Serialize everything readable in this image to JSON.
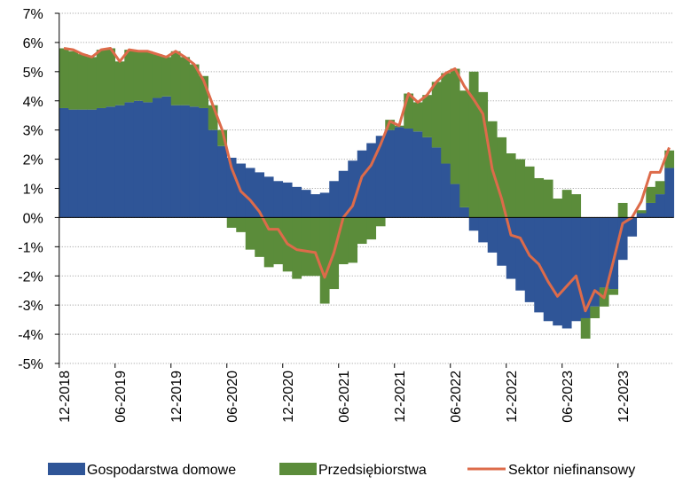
{
  "chart_data": {
    "type": "bar",
    "stacked": true,
    "grid": true,
    "categories": [
      "12-2018",
      null,
      null,
      null,
      null,
      null,
      "06-2019",
      null,
      null,
      null,
      null,
      null,
      "12-2019",
      null,
      null,
      null,
      null,
      null,
      "06-2020",
      null,
      null,
      null,
      null,
      null,
      "12-2020",
      null,
      null,
      null,
      null,
      null,
      "06-2021",
      null,
      null,
      null,
      null,
      null,
      "12-2021",
      null,
      null,
      null,
      null,
      null,
      "06-2022",
      null,
      null,
      null,
      null,
      null,
      "12-2022",
      null,
      null,
      null,
      null,
      null,
      "06-2023",
      null,
      null,
      null,
      null,
      null,
      "12-2023",
      null,
      null,
      null,
      null,
      null
    ],
    "ylim": [
      -5,
      7
    ],
    "yticks": [
      {
        "value": -5,
        "label": "-5%"
      },
      {
        "value": -4,
        "label": "-4%"
      },
      {
        "value": -3,
        "label": "-3%"
      },
      {
        "value": -2,
        "label": "-2%"
      },
      {
        "value": -1,
        "label": "-1%"
      },
      {
        "value": 0,
        "label": "0%"
      },
      {
        "value": 1,
        "label": "1%"
      },
      {
        "value": 2,
        "label": "2%"
      },
      {
        "value": 3,
        "label": "3%"
      },
      {
        "value": 4,
        "label": "4%"
      },
      {
        "value": 5,
        "label": "5%"
      },
      {
        "value": 6,
        "label": "6%"
      },
      {
        "value": 7,
        "label": "7%"
      }
    ],
    "series": [
      {
        "name": "Gospodarstwa domowe",
        "type": "bar",
        "color": "#2f5597",
        "values": [
          3.75,
          3.7,
          3.7,
          3.7,
          3.75,
          3.8,
          3.85,
          3.95,
          4.0,
          3.95,
          4.1,
          4.15,
          3.85,
          3.85,
          3.8,
          3.75,
          3.0,
          2.45,
          2.05,
          1.85,
          1.7,
          1.55,
          1.4,
          1.25,
          1.2,
          1.05,
          0.95,
          0.8,
          0.85,
          1.25,
          1.6,
          1.95,
          2.3,
          2.55,
          2.8,
          3.0,
          3.1,
          3.05,
          2.95,
          2.75,
          2.4,
          1.85,
          1.15,
          0.35,
          -0.45,
          -0.85,
          -1.2,
          -1.65,
          -2.1,
          -2.5,
          -2.9,
          -3.25,
          -3.55,
          -3.7,
          -3.8,
          -3.55,
          -3.45,
          -3.05,
          -2.4,
          -2.45,
          -1.45,
          -0.65,
          0.15,
          0.5,
          0.8,
          1.7
        ]
      },
      {
        "name": "Przedsiębiorstwa",
        "type": "bar",
        "color": "#5b8c3a",
        "values": [
          2.05,
          2.0,
          1.9,
          1.8,
          2.0,
          2.0,
          1.5,
          1.8,
          1.7,
          1.75,
          1.5,
          1.35,
          1.85,
          1.65,
          1.45,
          1.1,
          0.85,
          0.55,
          -0.35,
          -0.5,
          -1.1,
          -1.35,
          -1.7,
          -1.6,
          -1.85,
          -2.1,
          -2.0,
          -2.0,
          -2.95,
          -2.45,
          -1.6,
          -1.55,
          -0.9,
          -0.75,
          -0.3,
          0.35,
          0.05,
          1.2,
          1.0,
          1.45,
          2.25,
          3.1,
          3.95,
          4.0,
          5.0,
          4.3,
          3.3,
          2.75,
          2.2,
          2.0,
          1.75,
          1.35,
          1.3,
          0.65,
          0.95,
          0.8,
          -0.7,
          -0.4,
          -0.65,
          -0.2,
          0.5,
          0.0,
          0.1,
          0.55,
          0.45,
          0.6
        ]
      },
      {
        "name": "Sektor niefinansowy",
        "type": "line",
        "color": "#dd6b4a",
        "values": [
          5.8,
          5.75,
          5.6,
          5.5,
          5.75,
          5.8,
          5.35,
          5.75,
          5.7,
          5.7,
          5.6,
          5.5,
          5.7,
          5.5,
          5.25,
          4.7,
          3.85,
          3.0,
          1.7,
          0.9,
          0.6,
          0.2,
          -0.4,
          -0.4,
          -0.9,
          -1.1,
          -1.15,
          -1.2,
          -2.05,
          -1.2,
          0.0,
          0.4,
          1.4,
          1.8,
          2.5,
          3.3,
          3.15,
          4.25,
          3.95,
          4.2,
          4.65,
          4.95,
          5.1,
          4.5,
          4.05,
          3.55,
          1.65,
          0.65,
          -0.6,
          -0.7,
          -1.3,
          -1.6,
          -2.2,
          -2.7,
          -2.35,
          -2.0,
          -3.2,
          -2.5,
          -2.75,
          -1.5,
          -0.2,
          0.0,
          0.55,
          1.55,
          1.55,
          2.4
        ]
      }
    ]
  }
}
